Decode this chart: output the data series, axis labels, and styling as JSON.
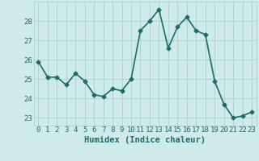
{
  "x": [
    0,
    1,
    2,
    3,
    4,
    5,
    6,
    7,
    8,
    9,
    10,
    11,
    12,
    13,
    14,
    15,
    16,
    17,
    18,
    19,
    20,
    21,
    22,
    23
  ],
  "y": [
    25.9,
    25.1,
    25.1,
    24.7,
    25.3,
    24.9,
    24.2,
    24.1,
    24.5,
    24.4,
    25.0,
    27.5,
    28.0,
    28.6,
    26.6,
    27.7,
    28.2,
    27.5,
    27.3,
    24.9,
    23.7,
    23.0,
    23.1,
    23.3
  ],
  "line_color": "#1e6b6b",
  "marker": "D",
  "marker_size": 2.5,
  "bg_color": "#ceeaea",
  "grid_color": "#aecece",
  "xlabel": "Humidex (Indice chaleur)",
  "xlabel_fontsize": 7.5,
  "ylabel_ticks": [
    23,
    24,
    25,
    26,
    27,
    28
  ],
  "xtick_labels": [
    "0",
    "1",
    "2",
    "3",
    "4",
    "5",
    "6",
    "7",
    "8",
    "9",
    "10",
    "11",
    "12",
    "13",
    "14",
    "15",
    "16",
    "17",
    "18",
    "19",
    "20",
    "21",
    "22",
    "23"
  ],
  "ylim": [
    22.6,
    29.0
  ],
  "xlim": [
    -0.5,
    23.5
  ],
  "tick_color": "#1e6b6b",
  "tick_fontsize": 6.5,
  "linewidth": 1.2
}
